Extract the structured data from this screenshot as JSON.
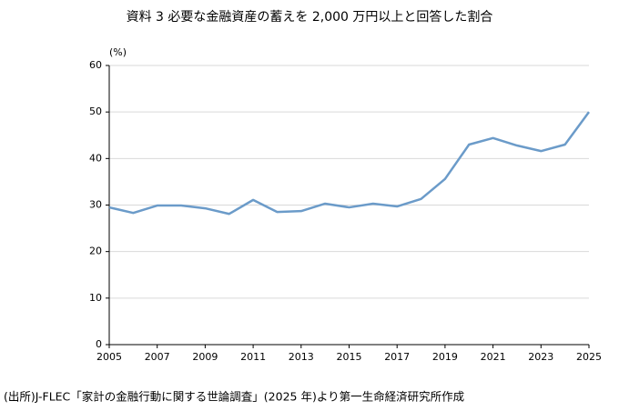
{
  "chart_data": {
    "type": "line",
    "title": "資料 3 必要な金融資産の蓄えを 2,000 万円以上と回答した割合",
    "y_label": "(%)",
    "source": "(出所)J-FLEC「家計の金融行動に関する世論調査」(2025 年)より第一生命経済研究所作成",
    "x": [
      2005,
      2006,
      2007,
      2008,
      2009,
      2010,
      2011,
      2012,
      2013,
      2014,
      2015,
      2016,
      2017,
      2018,
      2019,
      2020,
      2021,
      2022,
      2023,
      2024,
      2025
    ],
    "series": [
      {
        "color": "#6b9bc9",
        "values": [
          29.5,
          28.3,
          29.9,
          29.9,
          29.3,
          28.1,
          31.1,
          28.5,
          28.7,
          30.3,
          29.5,
          30.3,
          29.7,
          31.3,
          35.6,
          43.0,
          44.4,
          42.8,
          41.6,
          43.0,
          50.0
        ]
      }
    ],
    "xlim": [
      2005,
      2025
    ],
    "xticks": [
      2005,
      2007,
      2009,
      2011,
      2013,
      2015,
      2017,
      2019,
      2021,
      2023,
      2025
    ],
    "ylim": [
      0,
      60
    ],
    "yticks": [
      0,
      10,
      20,
      30,
      40,
      50,
      60
    ],
    "grid": true
  }
}
